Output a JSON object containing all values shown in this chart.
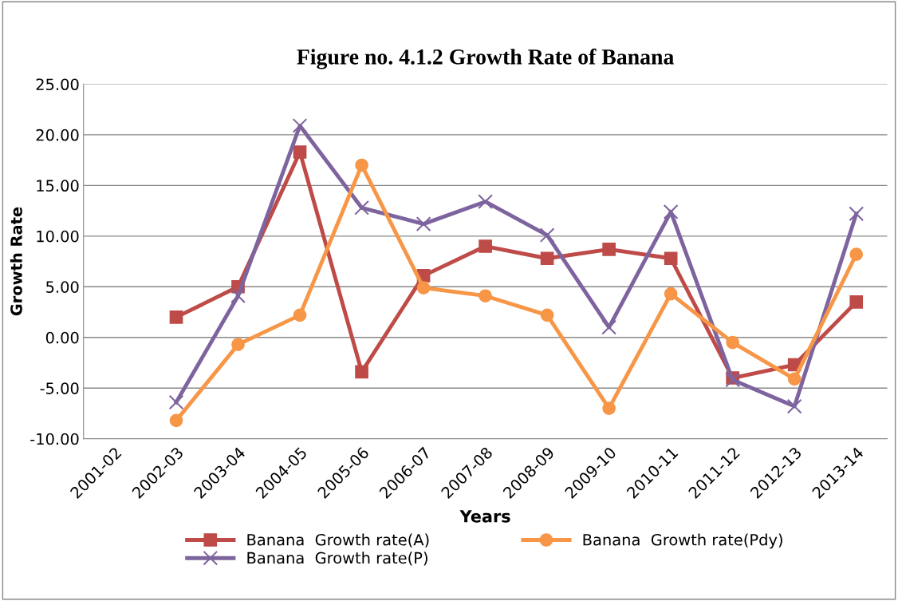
{
  "chart_data": {
    "type": "line",
    "title": "Figure no. 4.1.2 Growth Rate of Banana",
    "xlabel": "Years",
    "ylabel": "Growth Rate",
    "categories": [
      "2001-02",
      "2002-03",
      "2003-04",
      "2004-05",
      "2005-06",
      "2006-07",
      "2007-08",
      "2008-09",
      "2009-10",
      "2010-11",
      "2011-12",
      "2012-13",
      "2013-14"
    ],
    "series": [
      {
        "name": "Banana  Growth rate(A)",
        "color": "#be4b48",
        "marker": "square",
        "values": [
          null,
          2.0,
          5.0,
          18.3,
          -3.4,
          6.1,
          9.0,
          7.8,
          8.7,
          7.8,
          -4.0,
          -2.7,
          3.5
        ]
      },
      {
        "name": "Banana  Growth rate(P)",
        "color": "#7e649e",
        "marker": "cross",
        "values": [
          null,
          -6.4,
          4.1,
          20.9,
          12.8,
          11.2,
          13.4,
          10.1,
          1.0,
          12.4,
          -4.2,
          -6.8,
          12.2
        ]
      },
      {
        "name": "Banana  Growth rate(Pdy)",
        "color": "#f79646",
        "marker": "circle",
        "values": [
          null,
          -8.2,
          -0.7,
          2.2,
          17.0,
          4.9,
          4.1,
          2.2,
          -7.0,
          4.3,
          -0.5,
          -4.1,
          8.2
        ]
      }
    ],
    "ylim": [
      -10,
      25
    ],
    "yticks": [
      {
        "value": -10,
        "label": "-10.00"
      },
      {
        "value": -5,
        "label": "-5.00"
      },
      {
        "value": 0,
        "label": "0.00"
      },
      {
        "value": 5,
        "label": "5.00"
      },
      {
        "value": 10,
        "label": "10.00"
      },
      {
        "value": 15,
        "label": "15.00"
      },
      {
        "value": 20,
        "label": "20.00"
      },
      {
        "value": 25,
        "label": "25.00"
      }
    ],
    "grid": "y",
    "legend": "bottom",
    "line_style": "solid"
  }
}
